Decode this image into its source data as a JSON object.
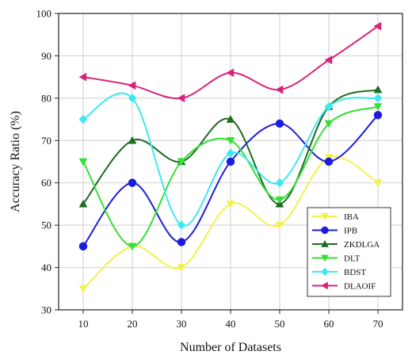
{
  "chart_data": {
    "type": "line",
    "xlabel": "Number  of Datasets",
    "ylabel": "Accuracy Ratio (%)",
    "x": [
      10,
      20,
      30,
      40,
      50,
      60,
      70
    ],
    "xticks": [
      "10",
      "20",
      "30",
      "40",
      "50",
      "60",
      "70"
    ],
    "yticks": [
      "30",
      "40",
      "50",
      "60",
      "70",
      "80",
      "90",
      "100"
    ],
    "xlim": [
      5,
      75
    ],
    "ylim": [
      30,
      100
    ],
    "grid": true,
    "legend_position": "bottom-right",
    "series": [
      {
        "name": "IBA",
        "color": "#f2f24a",
        "marker": "triangle-down",
        "values": [
          35,
          45,
          40,
          55,
          50,
          66,
          60
        ]
      },
      {
        "name": "IPB",
        "color": "#1c1cdc",
        "marker": "circle",
        "values": [
          45,
          60,
          46,
          65,
          74,
          65,
          76
        ]
      },
      {
        "name": "ZKDLGA",
        "color": "#1f6b1f",
        "marker": "triangle-up",
        "values": [
          55,
          70,
          65,
          75,
          55,
          78,
          82
        ]
      },
      {
        "name": "DLT",
        "color": "#35e035",
        "marker": "triangle-down",
        "values": [
          65,
          45,
          65,
          70,
          56,
          74,
          78
        ]
      },
      {
        "name": "BDST",
        "color": "#3de8f0",
        "marker": "diamond",
        "values": [
          75,
          80,
          50,
          67,
          60,
          78,
          80
        ]
      },
      {
        "name": "DLAOIF",
        "color": "#d9227a",
        "marker": "triangle-left",
        "values": [
          85,
          83,
          80,
          86,
          82,
          89,
          97
        ]
      }
    ]
  }
}
